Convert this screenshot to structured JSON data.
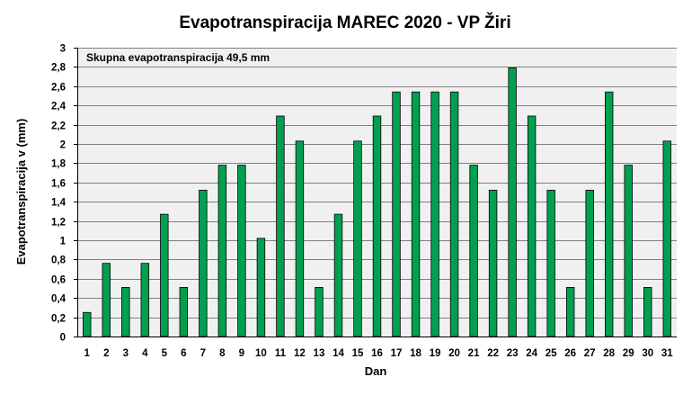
{
  "chart_data": {
    "type": "bar",
    "title": "Evapotranspiracija  MAREC 2020 - VP Žiri",
    "xlabel": "Dan",
    "ylabel": "Evapotranspiracija v  (mm)",
    "annotation": "Skupna evapotranspiracija  49,5 mm",
    "ylim": [
      0,
      3
    ],
    "ytick_step": 0.2,
    "ytick_labels": [
      "0",
      "0,2",
      "0,4",
      "0,6",
      "0,8",
      "1",
      "1,2",
      "1,4",
      "1,6",
      "1,8",
      "2",
      "2,2",
      "2,4",
      "2,6",
      "2,8",
      "3"
    ],
    "categories": [
      "1",
      "2",
      "3",
      "4",
      "5",
      "6",
      "7",
      "8",
      "9",
      "10",
      "11",
      "12",
      "13",
      "14",
      "15",
      "16",
      "17",
      "18",
      "19",
      "20",
      "21",
      "22",
      "23",
      "24",
      "25",
      "26",
      "27",
      "28",
      "29",
      "30",
      "31"
    ],
    "values": [
      0.25,
      0.76,
      0.51,
      0.76,
      1.27,
      0.51,
      1.52,
      1.78,
      1.78,
      1.02,
      2.29,
      2.03,
      0.51,
      1.27,
      2.03,
      2.29,
      2.54,
      2.54,
      2.54,
      2.54,
      1.78,
      1.52,
      2.79,
      2.29,
      1.52,
      0.51,
      1.52,
      2.54,
      1.78,
      0.51,
      2.03
    ],
    "grid": true,
    "colors": {
      "bar": "#00A050",
      "plot_bg": "#F0F0F0",
      "grid": "#808080"
    }
  }
}
